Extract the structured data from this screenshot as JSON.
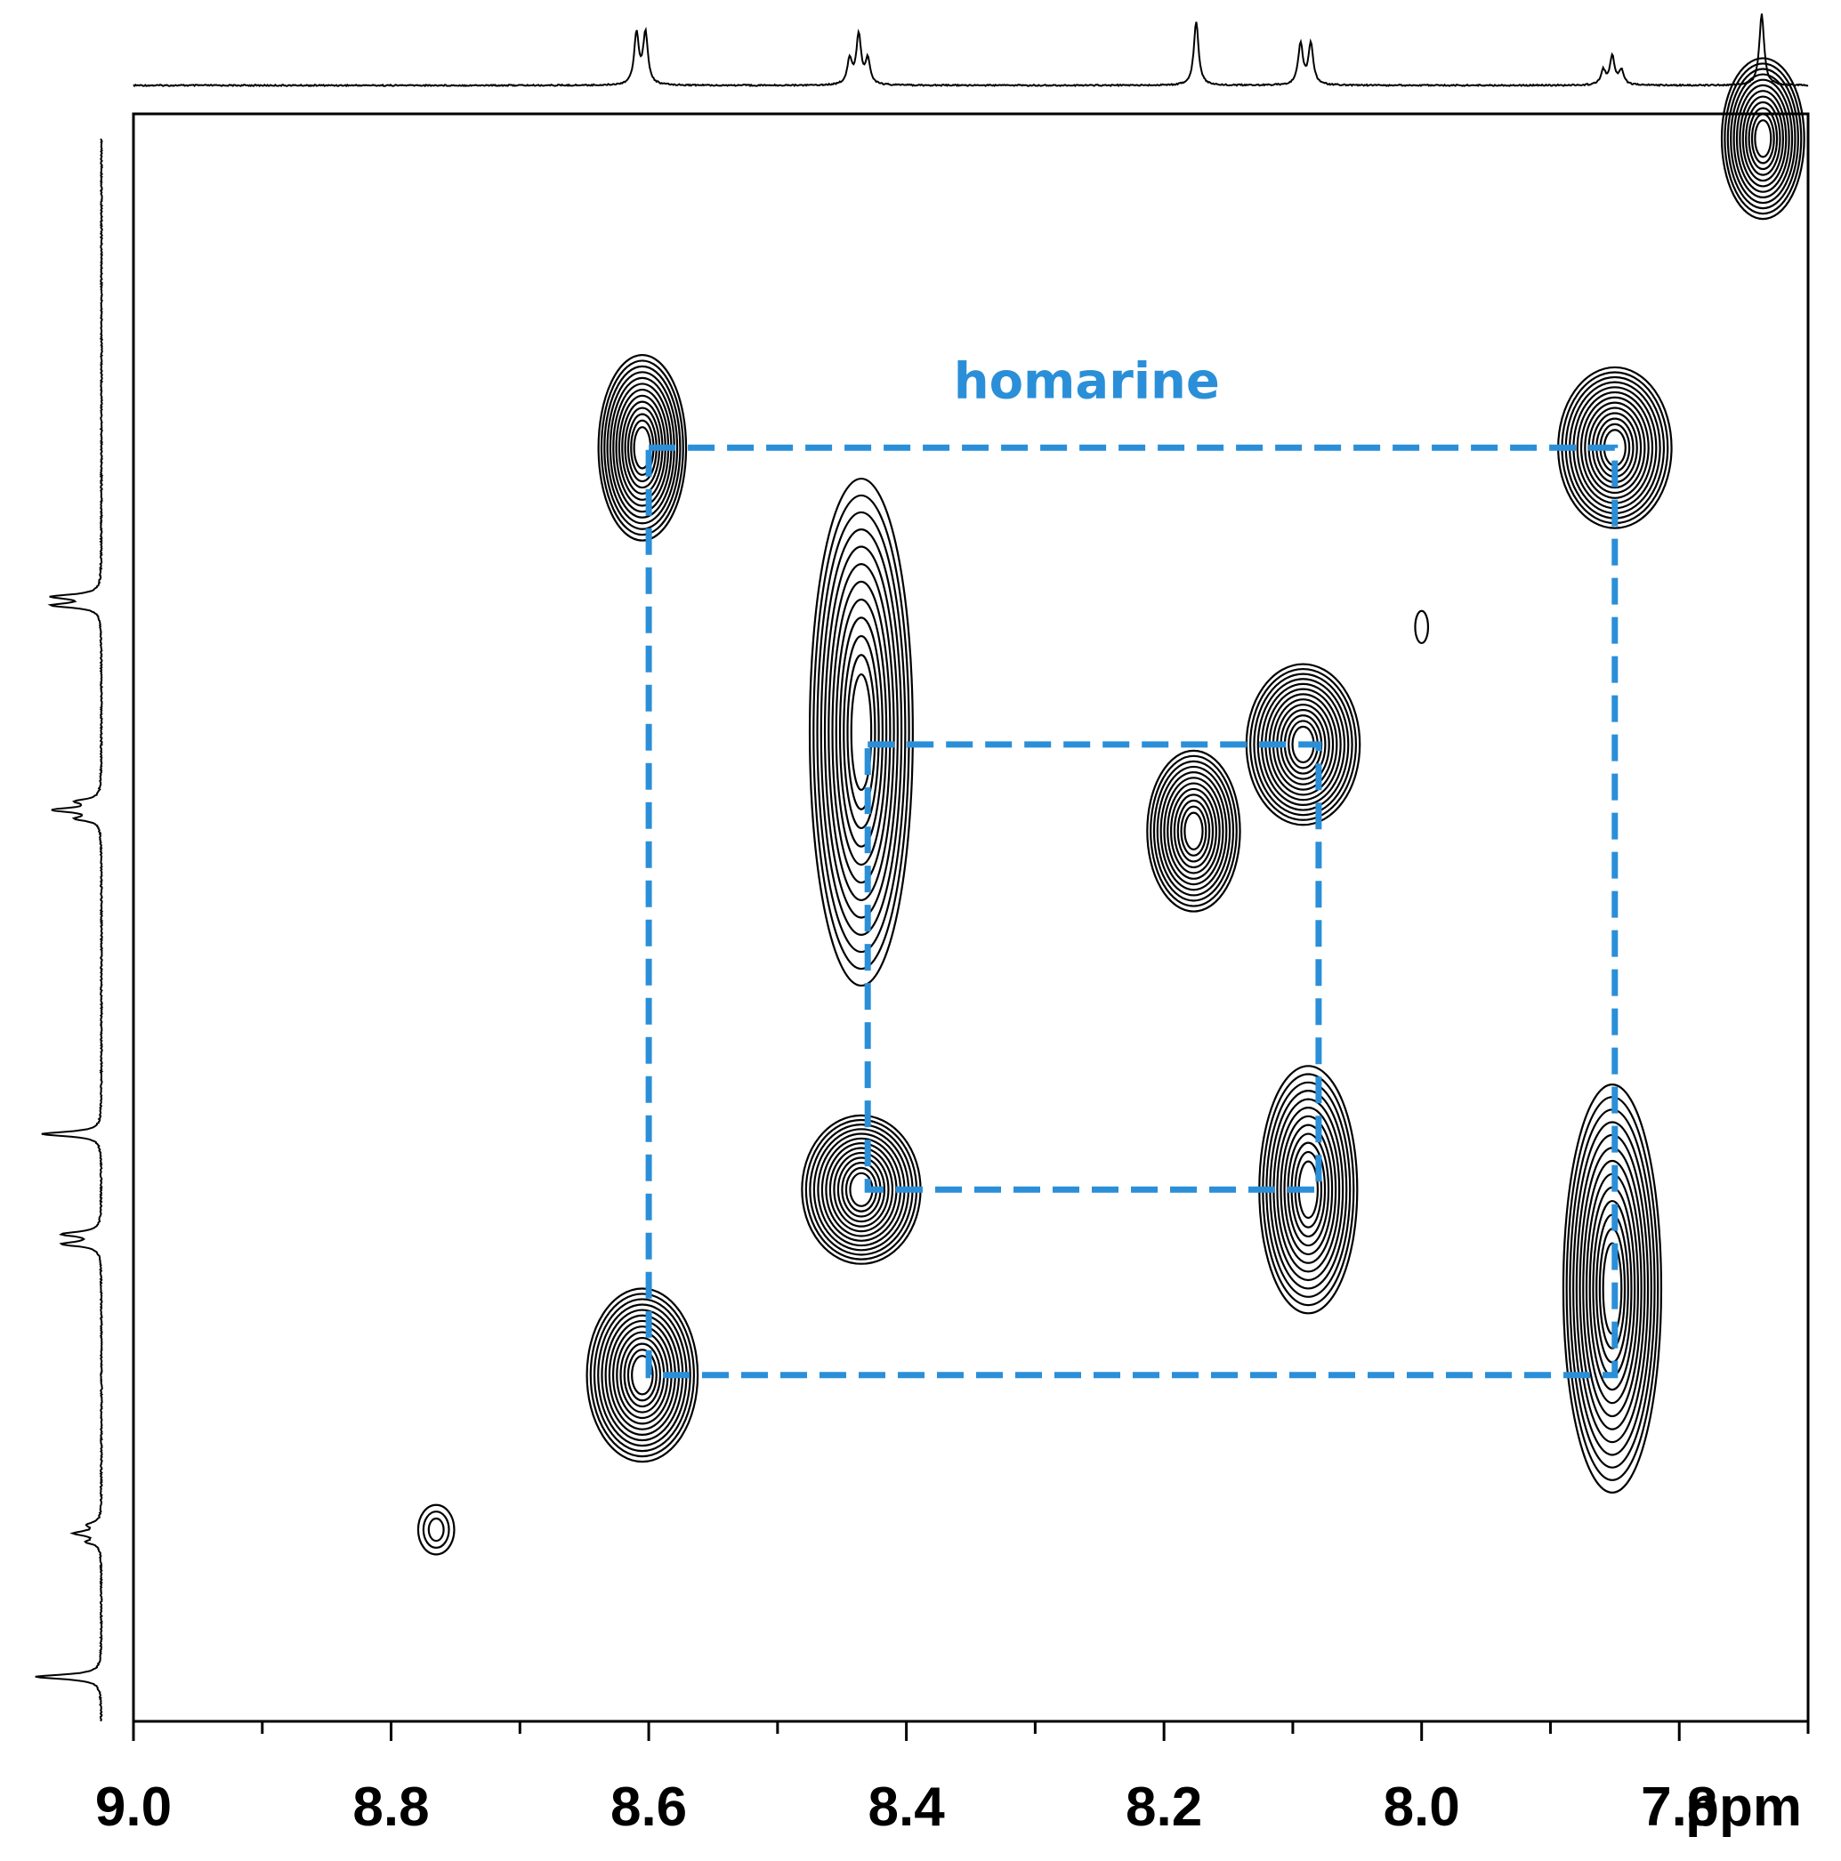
{
  "chart_data": {
    "type": "contour",
    "xlabel": "ppm",
    "ylabel": "",
    "xlim": [
      9.0,
      7.7
    ],
    "ylim": [
      9.0,
      7.7
    ],
    "x_ticks_major": [
      "9.0",
      "8.8",
      "8.6",
      "8.4",
      "8.2",
      "8.0",
      "7.8"
    ],
    "x_ticks_minor_step": 0.1,
    "grid": false,
    "annotation": {
      "text": "homarine",
      "color": "#2a8fd8",
      "x": 8.26,
      "y": 8.77
    },
    "spin_systems": [
      {
        "corners": [
          [
            8.6,
            8.73
          ],
          [
            7.85,
            8.73
          ],
          [
            7.85,
            7.98
          ],
          [
            8.6,
            7.98
          ]
        ]
      },
      {
        "corners": [
          [
            8.43,
            8.49
          ],
          [
            8.08,
            8.49
          ],
          [
            8.08,
            8.13
          ],
          [
            8.43,
            8.13
          ]
        ]
      }
    ],
    "peaks": [
      {
        "x": 8.605,
        "y": 8.73,
        "wx": 0.034,
        "wy": 0.075,
        "n": 13
      },
      {
        "x": 7.85,
        "y": 8.73,
        "wx": 0.044,
        "wy": 0.065,
        "n": 13
      },
      {
        "x": 8.435,
        "y": 8.5,
        "wx": 0.04,
        "wy": 0.205,
        "n": 12
      },
      {
        "x": 8.092,
        "y": 8.49,
        "wx": 0.044,
        "wy": 0.065,
        "n": 13
      },
      {
        "x": 8.177,
        "y": 8.42,
        "wx": 0.036,
        "wy": 0.065,
        "n": 12
      },
      {
        "x": 8.435,
        "y": 8.13,
        "wx": 0.046,
        "wy": 0.06,
        "n": 13
      },
      {
        "x": 8.088,
        "y": 8.13,
        "wx": 0.038,
        "wy": 0.1,
        "n": 12
      },
      {
        "x": 7.852,
        "y": 8.05,
        "wx": 0.038,
        "wy": 0.165,
        "n": 13
      },
      {
        "x": 8.605,
        "y": 7.98,
        "wx": 0.043,
        "wy": 0.07,
        "n": 13
      },
      {
        "x": 7.735,
        "y": 8.98,
        "wx": 0.032,
        "wy": 0.065,
        "n": 12
      },
      {
        "x": 8.765,
        "y": 7.855,
        "wx": 0.014,
        "wy": 0.02,
        "n": 3
      },
      {
        "x": 8.0,
        "y": 8.585,
        "wx": 0.005,
        "wy": 0.013,
        "n": 1
      }
    ],
    "projection_1d": {
      "multiplets": [
        {
          "ppm": 8.606,
          "lines": 2,
          "j": 0.007,
          "height": 0.72
        },
        {
          "ppm": 8.437,
          "lines": 3,
          "j": 0.007,
          "height": 0.7
        },
        {
          "ppm": 8.175,
          "lines": 1,
          "j": 0,
          "height": 0.9
        },
        {
          "ppm": 8.09,
          "lines": 2,
          "j": 0.008,
          "height": 0.58
        },
        {
          "ppm": 7.852,
          "lines": 3,
          "j": 0.007,
          "height": 0.4
        },
        {
          "ppm": 7.736,
          "lines": 1,
          "j": 0,
          "height": 1.0
        }
      ]
    }
  }
}
